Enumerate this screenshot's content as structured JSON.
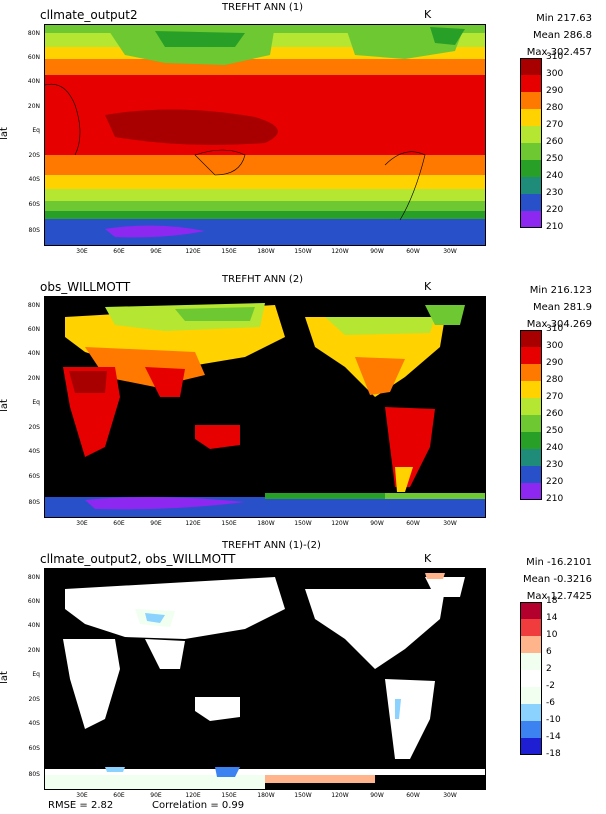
{
  "axes": {
    "ylabel": "lat",
    "lat_ticks": [
      "80N",
      "60N",
      "40N",
      "20N",
      "Eq",
      "20S",
      "40S",
      "60S",
      "80S"
    ],
    "lon_ticks": [
      "30E",
      "60E",
      "90E",
      "120E",
      "150E",
      "180W",
      "150W",
      "120W",
      "90W",
      "60W",
      "30W"
    ]
  },
  "panels": [
    {
      "case": "cllmate_output2",
      "title": "TREFHT ANN (1)",
      "units": "K",
      "stats": {
        "min": "Min 217.63",
        "mean": "Mean 286.8",
        "max": "Max 302.457"
      }
    },
    {
      "case": "obs_WILLMOTT",
      "title": "TREFHT ANN (2)",
      "units": "K",
      "stats": {
        "min": "Min 216.123",
        "mean": "Mean 281.9",
        "max": "Max 304.269"
      }
    },
    {
      "case": "cllmate_output2, obs_WILLMOTT",
      "title": "TREFHT ANN (1)-(2)",
      "units": "K",
      "stats": {
        "min": "Min -16.2101",
        "mean": "Mean -0.3216",
        "max": "Max 12.7425"
      }
    }
  ],
  "colorbars": {
    "absolute": {
      "labels": [
        "310",
        "300",
        "290",
        "280",
        "270",
        "260",
        "250",
        "240",
        "230",
        "220",
        "210"
      ],
      "colors": [
        "#a80000",
        "#e60000",
        "#ff7800",
        "#ffd200",
        "#b4e632",
        "#6ec832",
        "#28a028",
        "#1e8c78",
        "#2850c8",
        "#8c28f0"
      ]
    },
    "difference": {
      "labels": [
        "18",
        "14",
        "10",
        "6",
        "2",
        "-2",
        "-6",
        "-10",
        "-14",
        "-18"
      ],
      "colors": [
        "#b4002d",
        "#f03c3c",
        "#ffb48c",
        "#f0fff0",
        "#ffffff",
        "#f0fff0",
        "#8cd2ff",
        "#3c82f0",
        "#1e1ed2"
      ]
    }
  },
  "footer": {
    "rmse": "RMSE = 2.82",
    "correlation": "Correlation = 0.99"
  },
  "chart_data": [
    {
      "type": "heatmap",
      "title": "TREFHT ANN (1)",
      "case": "cllmate_output2",
      "ylabel": "lat",
      "units": "K",
      "xlim": [
        0,
        360
      ],
      "ylim": [
        -90,
        90
      ],
      "zlevels": [
        210,
        220,
        230,
        240,
        250,
        260,
        270,
        280,
        290,
        300,
        310
      ],
      "min": 217.63,
      "mean": 286.8,
      "max": 302.457
    },
    {
      "type": "heatmap",
      "title": "TREFHT ANN (2)",
      "case": "obs_WILLMOTT",
      "ylabel": "lat",
      "units": "K",
      "xlim": [
        0,
        360
      ],
      "ylim": [
        -90,
        90
      ],
      "zlevels": [
        210,
        220,
        230,
        240,
        250,
        260,
        270,
        280,
        290,
        300,
        310
      ],
      "min": 216.123,
      "mean": 281.9,
      "max": 304.269
    },
    {
      "type": "heatmap",
      "title": "TREFHT ANN (1)-(2)",
      "case": "cllmate_output2, obs_WILLMOTT",
      "ylabel": "lat",
      "units": "K",
      "xlim": [
        0,
        360
      ],
      "ylim": [
        -90,
        90
      ],
      "zlevels": [
        -18,
        -14,
        -10,
        -6,
        -2,
        2,
        6,
        10,
        14,
        18
      ],
      "min": -16.2101,
      "mean": -0.3216,
      "max": 12.7425,
      "rmse": 2.82,
      "correlation": 0.99
    }
  ]
}
